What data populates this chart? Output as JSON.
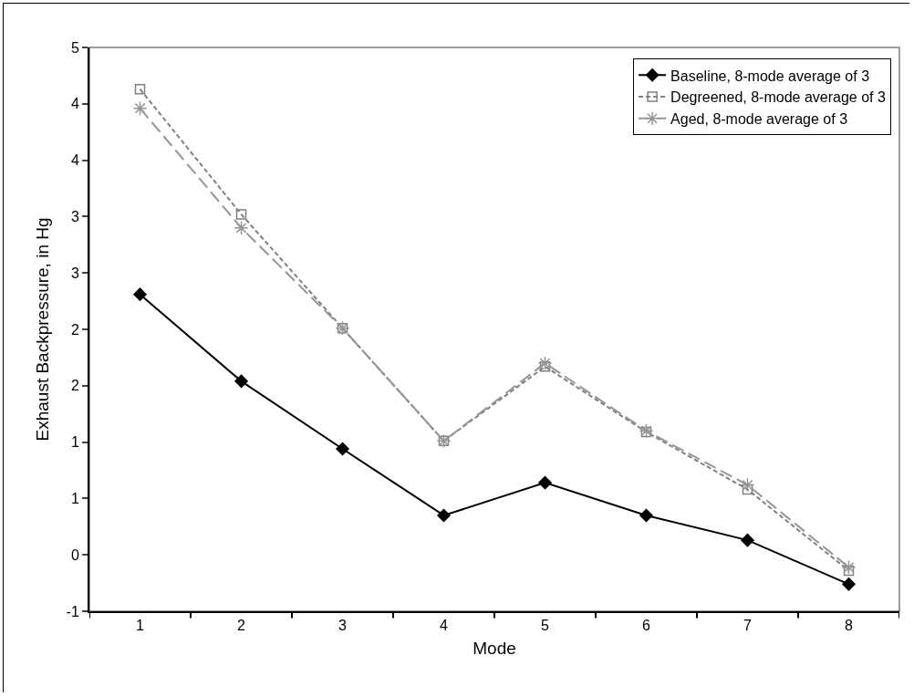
{
  "chart_data": {
    "type": "line",
    "xlabel": "Mode",
    "ylabel": "Exhaust Backpressure, in Hg",
    "categories": [
      "1",
      "2",
      "3",
      "4",
      "5",
      "6",
      "7",
      "8"
    ],
    "series": [
      {
        "name": "Baseline, 8-mode average of 3",
        "color": "#000000",
        "marker": "diamond",
        "line_style": "solid",
        "values": [
          2.31,
          1.54,
          0.94,
          0.35,
          0.64,
          0.35,
          0.13,
          -0.26
        ]
      },
      {
        "name": "Degreened, 8-mode average of 3",
        "color": "#808080",
        "marker": "square",
        "line_style": "dotted",
        "values": [
          4.13,
          3.02,
          2.01,
          1.01,
          1.67,
          1.09,
          0.58,
          -0.14
        ]
      },
      {
        "name": "Aged, 8-mode average of 3",
        "color": "#969696",
        "marker": "cross",
        "line_style": "dashed",
        "values": [
          3.96,
          2.9,
          2.01,
          1.01,
          1.7,
          1.1,
          0.62,
          -0.11
        ]
      }
    ],
    "ylim": [
      -0.5,
      4.5
    ],
    "yticks": [
      {
        "value": -0.5,
        "label": "-1"
      },
      0,
      {
        "value": 0.5,
        "label": "1"
      },
      1,
      {
        "value": 1.5,
        "label": "2"
      },
      2,
      {
        "value": 2.5,
        "label": "3"
      },
      3,
      {
        "value": 3.5,
        "label": "4"
      },
      4,
      {
        "value": 4.5,
        "label": "5"
      }
    ],
    "grid": false,
    "legend": "top right"
  }
}
